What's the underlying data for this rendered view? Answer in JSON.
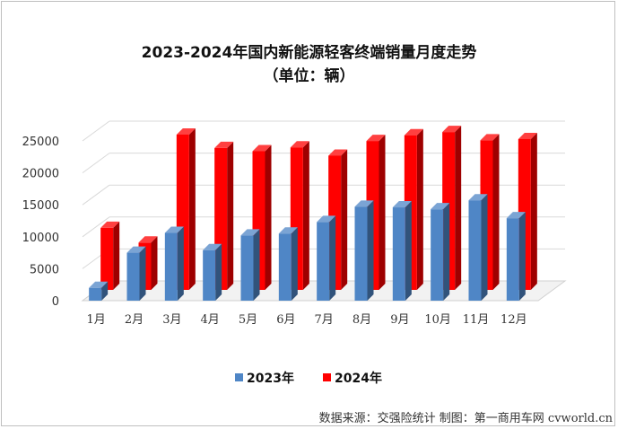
{
  "title_line1": "2023-2024年国内新能源轻客终端销量月度走势",
  "title_line2": "（单位：辆）",
  "source_note": "数据来源：交强险统计 制图：第一商用车网 cvworld.cn",
  "colors": {
    "s2023": "#4f86c6",
    "s2024": "#ff0000"
  },
  "chart_data": {
    "type": "bar",
    "title": "2023-2024年国内新能源轻客终端销量月度走势",
    "subtitle": "（单位：辆）",
    "categories": [
      "1月",
      "2月",
      "3月",
      "4月",
      "5月",
      "6月",
      "7月",
      "8月",
      "9月",
      "10月",
      "11月",
      "12月"
    ],
    "series": [
      {
        "name": "2023年",
        "values": [
          2000,
          7500,
          10600,
          7900,
          10200,
          10500,
          12300,
          14700,
          14600,
          14300,
          15700,
          12900
        ]
      },
      {
        "name": "2024年",
        "values": [
          9700,
          7400,
          24300,
          22200,
          21700,
          22300,
          21000,
          23300,
          24200,
          24700,
          23400,
          23600
        ]
      }
    ],
    "yticks": [
      0,
      5000,
      10000,
      15000,
      20000,
      25000
    ],
    "ylim": [
      0,
      25000
    ],
    "grid": true,
    "legend_position": "bottom"
  }
}
